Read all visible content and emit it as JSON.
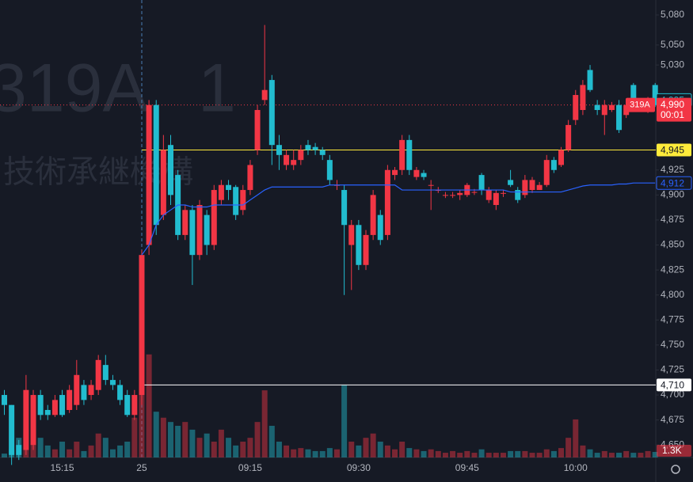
{
  "chart_data": {
    "type": "candlestick",
    "watermark": {
      "symbol": "319A",
      "interval": "1",
      "name": "技術承継機構"
    },
    "categories": [
      null,
      null,
      null,
      null,
      null,
      null,
      null,
      null,
      "15:15",
      null,
      null,
      null,
      null,
      null,
      null,
      null,
      null,
      null,
      null,
      "25",
      null,
      null,
      null,
      null,
      null,
      null,
      null,
      null,
      null,
      null,
      null,
      null,
      null,
      null,
      "09:15",
      null,
      null,
      null,
      null,
      null,
      null,
      null,
      null,
      null,
      null,
      null,
      null,
      null,
      null,
      "09:30",
      null,
      null,
      null,
      null,
      null,
      null,
      null,
      null,
      null,
      null,
      null,
      null,
      null,
      null,
      "09:45",
      null,
      null,
      null,
      null,
      null,
      null,
      null,
      null,
      null,
      null,
      null,
      null,
      null,
      null,
      "10:00",
      null,
      null,
      null,
      null,
      null,
      null,
      null,
      null,
      null,
      null,
      null
    ],
    "open": [
      4700,
      4690,
      4650,
      4645,
      4650,
      4700,
      4685,
      4680,
      4700,
      4685,
      4690,
      4710,
      4700,
      4705,
      4730,
      4715,
      4710,
      4700,
      4680,
      4700,
      4850,
      4990,
      4880,
      4950,
      4920,
      4860,
      4885,
      4840,
      4880,
      4850,
      4895,
      4910,
      4908,
      4885,
      4905,
      4945,
      4995,
      5015,
      4950,
      4930,
      4930,
      4935,
      4950,
      4948,
      4945,
      4935,
      4910,
      4905,
      4850,
      4870,
      4830,
      4860,
      4880,
      4860,
      4920,
      4925,
      4955,
      4918,
      4922,
      4910,
      4905,
      4900,
      4900,
      4900,
      4900,
      4903,
      4920,
      4895,
      4890,
      4902,
      4915,
      4905,
      4900,
      4905,
      4905,
      4910,
      4935,
      4930,
      4945,
      4975,
      4985,
      5025,
      4990,
      4980,
      4985,
      4990,
      4980,
      5010,
      4990,
      4985,
      5010
    ],
    "high": [
      4705,
      4690,
      4655,
      4720,
      4705,
      4705,
      4690,
      4700,
      4705,
      4710,
      4735,
      4715,
      4715,
      4740,
      4740,
      4720,
      4715,
      4705,
      4705,
      4845,
      4995,
      4995,
      4960,
      4960,
      4925,
      4890,
      4890,
      4895,
      4885,
      4910,
      4915,
      4915,
      4910,
      4910,
      4935,
      4990,
      5070,
      5020,
      4960,
      4945,
      4945,
      4950,
      4955,
      4952,
      4948,
      4940,
      4915,
      4910,
      4875,
      4875,
      4865,
      4905,
      4885,
      4930,
      4928,
      4960,
      4960,
      4928,
      4925,
      4915,
      4908,
      4903,
      4903,
      4905,
      4912,
      4906,
      4922,
      4908,
      4905,
      4905,
      4925,
      4908,
      4920,
      4918,
      4913,
      4940,
      4938,
      4948,
      4975,
      5005,
      5015,
      5030,
      4995,
      4995,
      4993,
      4995,
      4993,
      5012,
      4993,
      4998,
      5012
    ],
    "low": [
      4680,
      4630,
      4635,
      4640,
      4645,
      4675,
      4675,
      4678,
      4678,
      4682,
      4685,
      4690,
      4695,
      4700,
      4710,
      4705,
      4690,
      4678,
      4675,
      4690,
      4840,
      4860,
      4875,
      4890,
      4855,
      4855,
      4810,
      4835,
      4840,
      4845,
      4890,
      4895,
      4875,
      4880,
      4900,
      4940,
      4990,
      4930,
      4925,
      4925,
      4925,
      4930,
      4940,
      4940,
      4935,
      4910,
      4905,
      4800,
      4805,
      4825,
      4825,
      4855,
      4850,
      4855,
      4915,
      4920,
      4920,
      4915,
      4915,
      4885,
      4902,
      4897,
      4897,
      4895,
      4898,
      4900,
      4900,
      4892,
      4885,
      4898,
      4908,
      4892,
      4897,
      4902,
      4905,
      4908,
      4922,
      4928,
      4943,
      4970,
      4980,
      5003,
      4980,
      4960,
      4983,
      4962,
      4977,
      4988,
      4987,
      4982,
      4988
    ],
    "close": [
      4690,
      4640,
      4640,
      4705,
      4700,
      4680,
      4680,
      4695,
      4680,
      4705,
      4720,
      4695,
      4710,
      4735,
      4715,
      4710,
      4695,
      4680,
      4700,
      4840,
      4990,
      4870,
      4945,
      4900,
      4860,
      4885,
      4840,
      4890,
      4850,
      4905,
      4910,
      4905,
      4880,
      4905,
      4930,
      4985,
      5005,
      4950,
      4940,
      4940,
      4935,
      4945,
      4945,
      4945,
      4940,
      4915,
      4910,
      4870,
      4870,
      4830,
      4860,
      4900,
      4855,
      4925,
      4925,
      4955,
      4925,
      4925,
      4918,
      4910,
      4905,
      4900,
      4900,
      4902,
      4910,
      4903,
      4905,
      4905,
      4902,
      4902,
      4910,
      4895,
      4915,
      4915,
      4910,
      4935,
      4925,
      4945,
      4970,
      5000,
      5010,
      5005,
      4985,
      4990,
      4990,
      4965,
      4990,
      4990,
      4990,
      4995,
      4990
    ],
    "volume": [
      900,
      1900,
      4600,
      6500,
      7400,
      4600,
      2800,
      1900,
      3700,
      1900,
      3700,
      1500,
      2800,
      5600,
      4600,
      1900,
      2800,
      3700,
      9300,
      33500,
      24100,
      10700,
      9300,
      8300,
      7400,
      8300,
      6500,
      4600,
      5600,
      3700,
      6500,
      4600,
      2800,
      3700,
      4600,
      8300,
      15700,
      7400,
      3700,
      2800,
      1900,
      2200,
      1900,
      1500,
      1500,
      2200,
      1900,
      17000,
      3700,
      2800,
      4600,
      5600,
      3700,
      2800,
      1900,
      3700,
      2200,
      1900,
      1500,
      1900,
      1500,
      1100,
      1500,
      1100,
      1500,
      1100,
      1900,
      1100,
      1100,
      1100,
      1500,
      1500,
      1500,
      1100,
      1100,
      1900,
      1500,
      2200,
      4600,
      8900,
      2800,
      1900,
      1100,
      1500,
      1100,
      1100,
      1500,
      1100,
      1100,
      1500,
      1300
    ],
    "volume_label": "1.3K",
    "vwap": [
      null,
      null,
      null,
      null,
      null,
      null,
      null,
      null,
      null,
      null,
      null,
      null,
      null,
      null,
      null,
      null,
      null,
      null,
      null,
      4840,
      4850,
      4870,
      4880,
      4885,
      4890,
      4890,
      4888,
      4888,
      4888,
      4890,
      4890,
      4890,
      4890,
      4890,
      4895,
      4900,
      4905,
      4908,
      4908,
      4908,
      4908,
      4908,
      4908,
      4908,
      4908,
      4910,
      4910,
      4910,
      4910,
      4910,
      4910,
      4910,
      4910,
      4910,
      4910,
      4905,
      4905,
      4905,
      4905,
      4905,
      4905,
      4905,
      4905,
      4905,
      4905,
      4905,
      4905,
      4905,
      4905,
      4905,
      4903,
      4903,
      4903,
      4903,
      4903,
      4903,
      4903,
      4903,
      4905,
      4907,
      4909,
      4910,
      4910,
      4910,
      4910,
      4911,
      4911,
      4912,
      4912,
      4912,
      4912
    ],
    "up_color": "#f23645",
    "down_color": "#22bccf",
    "vwap_color": "#2962ff",
    "ylim": [
      4637.5,
      5095
    ],
    "yticks": [
      {
        "value": 5080,
        "label": "5,080"
      },
      {
        "value": 5050,
        "label": "5,050"
      },
      {
        "value": 5030,
        "label": "5,030"
      },
      {
        "value": 4925,
        "label": "4,925"
      },
      {
        "value": 4900,
        "label": "4,900"
      },
      {
        "value": 4875,
        "label": "4,875"
      },
      {
        "value": 4850,
        "label": "4,850"
      },
      {
        "value": 4825,
        "label": "4,825"
      },
      {
        "value": 4800,
        "label": "4,800"
      },
      {
        "value": 4775,
        "label": "4,775"
      },
      {
        "value": 4750,
        "label": "4,750"
      },
      {
        "value": 4725,
        "label": "4,725"
      },
      {
        "value": 4700,
        "label": "4,700"
      },
      {
        "value": 4675,
        "label": "4,675"
      },
      {
        "value": 4650,
        "label": "4,650"
      }
    ],
    "price_lines": [
      {
        "value": 4945,
        "label": "4,945",
        "color": "#ffeb3b"
      },
      {
        "value": 4710,
        "label": "4,710",
        "color": "#ffffff"
      }
    ],
    "price_labels": [
      {
        "value": 4995,
        "label": "4,995",
        "color": "#22bccf"
      },
      {
        "value": 4912,
        "label": "4,912",
        "color": "#2962ff"
      }
    ],
    "last_price": {
      "value": 4990,
      "label": "4,990",
      "symbol": "319A",
      "countdown": "00:01",
      "color": "#f23645"
    }
  }
}
